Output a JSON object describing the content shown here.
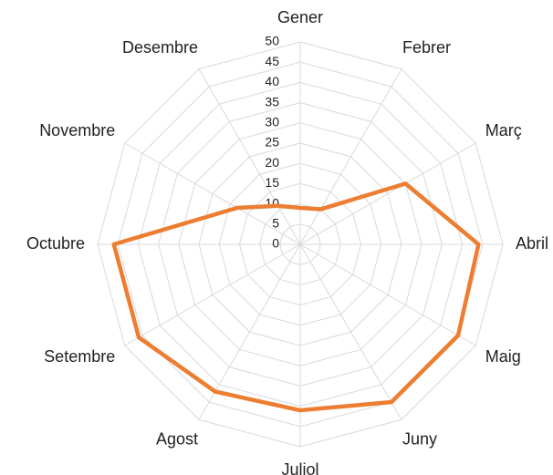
{
  "chart_data": {
    "type": "radar",
    "categories": [
      "Gener",
      "Febrer",
      "Març",
      "Abril",
      "Maig",
      "Juny",
      "Juliol",
      "Agost",
      "Setembre",
      "Octubre",
      "Novembre",
      "Desembre"
    ],
    "values": [
      9,
      10,
      30,
      44,
      45,
      45,
      41,
      42,
      46,
      46,
      18,
      11
    ],
    "color": "#ed7d31",
    "ylim": [
      0,
      50
    ],
    "yticks": [
      0,
      5,
      10,
      15,
      20,
      25,
      30,
      35,
      40,
      45,
      50
    ],
    "grid": true
  }
}
